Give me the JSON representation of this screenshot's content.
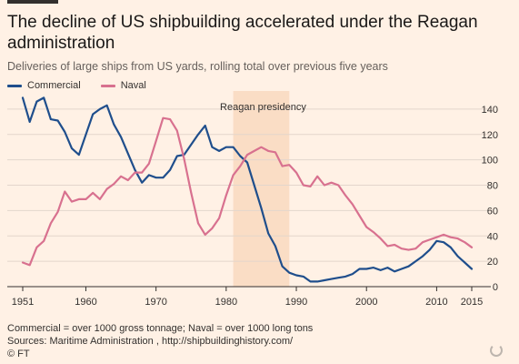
{
  "header": {
    "title": "The decline of US shipbuilding accelerated under the Reagan administration",
    "subtitle": "Deliveries of large ships from US yards, rolling total over previous five years"
  },
  "legend": {
    "commercial_label": "Commercial",
    "naval_label": "Naval"
  },
  "footer": {
    "note": "Commercial = over 1000 gross tonnage; Naval = over 1000 long tons",
    "sources": "Sources: Maritime Administration , http://shipbuildinghistory.com/",
    "copyright": "© FT"
  },
  "colors": {
    "background": "#fff1e5",
    "commercial": "#1f4e8c",
    "naval": "#d8718f",
    "highlight": "#f9d9bf",
    "grid": "#e3d6cc",
    "axis": "#33302e"
  },
  "chart_data": {
    "type": "line",
    "title": "The decline of US shipbuilding accelerated under the Reagan administration",
    "subtitle": "Deliveries of large ships from US yards, rolling total over previous five years",
    "xlabel": "",
    "ylabel": "",
    "xlim": [
      1951,
      2015
    ],
    "ylim": [
      0,
      150
    ],
    "x_ticks": [
      1951,
      1960,
      1970,
      1980,
      1990,
      2000,
      2010,
      2015
    ],
    "y_ticks": [
      0,
      20,
      40,
      60,
      80,
      100,
      120,
      140
    ],
    "y_axis_side": "right",
    "grid": true,
    "legend_position": "top-left",
    "annotations": [
      {
        "label": "Reagan presidency",
        "x_start": 1981,
        "x_end": 1989
      }
    ],
    "series": [
      {
        "name": "Commercial",
        "color": "#1f4e8c",
        "points": [
          [
            1951,
            149
          ],
          [
            1952,
            130
          ],
          [
            1953,
            146
          ],
          [
            1954,
            149
          ],
          [
            1955,
            132
          ],
          [
            1956,
            131
          ],
          [
            1957,
            122
          ],
          [
            1958,
            109
          ],
          [
            1959,
            104
          ],
          [
            1960,
            120
          ],
          [
            1961,
            136
          ],
          [
            1962,
            140
          ],
          [
            1963,
            143
          ],
          [
            1964,
            128
          ],
          [
            1965,
            118
          ],
          [
            1966,
            105
          ],
          [
            1967,
            92
          ],
          [
            1968,
            82
          ],
          [
            1969,
            88
          ],
          [
            1970,
            86
          ],
          [
            1971,
            86
          ],
          [
            1972,
            92
          ],
          [
            1973,
            103
          ],
          [
            1974,
            104
          ],
          [
            1975,
            112
          ],
          [
            1976,
            120
          ],
          [
            1977,
            127
          ],
          [
            1978,
            110
          ],
          [
            1979,
            107
          ],
          [
            1980,
            110
          ],
          [
            1981,
            110
          ],
          [
            1982,
            103
          ],
          [
            1983,
            98
          ],
          [
            1984,
            80
          ],
          [
            1985,
            62
          ],
          [
            1986,
            42
          ],
          [
            1987,
            32
          ],
          [
            1988,
            16
          ],
          [
            1989,
            11
          ],
          [
            1990,
            9
          ],
          [
            1991,
            8
          ],
          [
            1992,
            4
          ],
          [
            1993,
            4
          ],
          [
            1994,
            5
          ],
          [
            1995,
            6
          ],
          [
            1996,
            7
          ],
          [
            1997,
            8
          ],
          [
            1998,
            10
          ],
          [
            1999,
            14
          ],
          [
            2000,
            14
          ],
          [
            2001,
            15
          ],
          [
            2002,
            13
          ],
          [
            2003,
            15
          ],
          [
            2004,
            12
          ],
          [
            2005,
            14
          ],
          [
            2006,
            16
          ],
          [
            2007,
            20
          ],
          [
            2008,
            24
          ],
          [
            2009,
            29
          ],
          [
            2010,
            36
          ],
          [
            2011,
            35
          ],
          [
            2012,
            31
          ],
          [
            2013,
            24
          ],
          [
            2014,
            19
          ],
          [
            2015,
            14
          ]
        ]
      },
      {
        "name": "Naval",
        "color": "#d8718f",
        "points": [
          [
            1951,
            19
          ],
          [
            1952,
            17
          ],
          [
            1953,
            31
          ],
          [
            1954,
            36
          ],
          [
            1955,
            50
          ],
          [
            1956,
            59
          ],
          [
            1957,
            75
          ],
          [
            1958,
            67
          ],
          [
            1959,
            69
          ],
          [
            1960,
            69
          ],
          [
            1961,
            74
          ],
          [
            1962,
            69
          ],
          [
            1963,
            77
          ],
          [
            1964,
            81
          ],
          [
            1965,
            87
          ],
          [
            1966,
            84
          ],
          [
            1967,
            90
          ],
          [
            1968,
            90
          ],
          [
            1969,
            97
          ],
          [
            1970,
            115
          ],
          [
            1971,
            133
          ],
          [
            1972,
            132
          ],
          [
            1973,
            123
          ],
          [
            1974,
            101
          ],
          [
            1975,
            74
          ],
          [
            1976,
            50
          ],
          [
            1977,
            41
          ],
          [
            1978,
            46
          ],
          [
            1979,
            54
          ],
          [
            1980,
            72
          ],
          [
            1981,
            88
          ],
          [
            1982,
            95
          ],
          [
            1983,
            104
          ],
          [
            1984,
            107
          ],
          [
            1985,
            110
          ],
          [
            1986,
            107
          ],
          [
            1987,
            106
          ],
          [
            1988,
            95
          ],
          [
            1989,
            96
          ],
          [
            1990,
            90
          ],
          [
            1991,
            80
          ],
          [
            1992,
            79
          ],
          [
            1993,
            87
          ],
          [
            1994,
            80
          ],
          [
            1995,
            82
          ],
          [
            1996,
            80
          ],
          [
            1997,
            72
          ],
          [
            1998,
            65
          ],
          [
            1999,
            56
          ],
          [
            2000,
            47
          ],
          [
            2001,
            43
          ],
          [
            2002,
            38
          ],
          [
            2003,
            32
          ],
          [
            2004,
            33
          ],
          [
            2005,
            30
          ],
          [
            2006,
            29
          ],
          [
            2007,
            30
          ],
          [
            2008,
            35
          ],
          [
            2009,
            37
          ],
          [
            2010,
            39
          ],
          [
            2011,
            41
          ],
          [
            2012,
            39
          ],
          [
            2013,
            38
          ],
          [
            2014,
            35
          ],
          [
            2015,
            31
          ]
        ]
      }
    ]
  }
}
